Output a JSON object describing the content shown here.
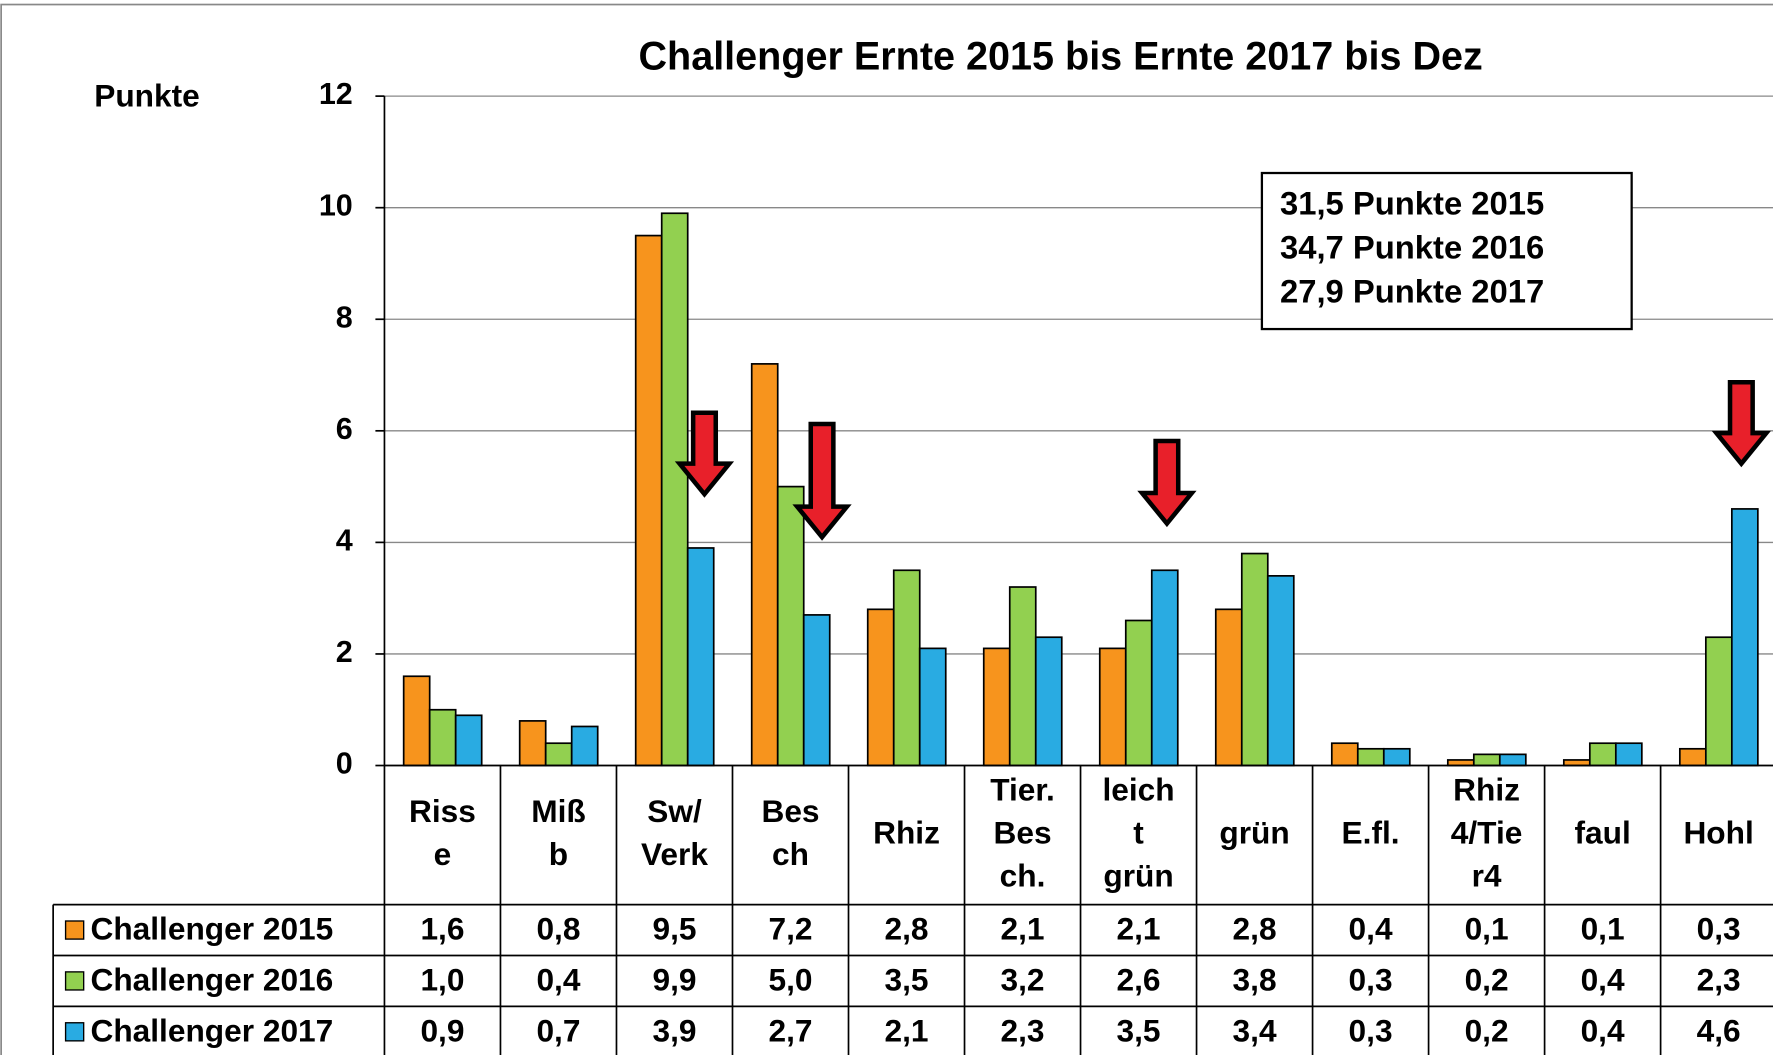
{
  "chart_data": {
    "type": "bar",
    "title": "Challenger Ernte 2015 bis Ernte 2017 bis Dez",
    "y_label": "Punkte",
    "annotation": [
      "31,5 Punkte 2015",
      "34,7 Punkte 2016",
      "27,9 Punkte 2017"
    ],
    "categories": [
      [
        "Riss",
        "e"
      ],
      [
        "Miß",
        "b"
      ],
      [
        "Sw/",
        "Verk"
      ],
      [
        "Bes",
        "ch"
      ],
      [
        "Rhiz"
      ],
      [
        "Tier.",
        "Bes",
        "ch."
      ],
      [
        "leich",
        "t",
        "grün"
      ],
      [
        "grün"
      ],
      [
        "E.fl."
      ],
      [
        "Rhiz",
        "4/Tie",
        "r4"
      ],
      [
        "faul"
      ],
      [
        "Hohl"
      ]
    ],
    "series": [
      {
        "name": "Challenger 2015",
        "color": "#f7941d",
        "values": [
          1.6,
          0.8,
          9.5,
          7.2,
          2.8,
          2.1,
          2.1,
          2.8,
          0.4,
          0.1,
          0.1,
          0.3
        ],
        "value_labels": [
          "1,6",
          "0,8",
          "9,5",
          "7,2",
          "2,8",
          "2,1",
          "2,1",
          "2,8",
          "0,4",
          "0,1",
          "0,1",
          "0,3"
        ]
      },
      {
        "name": "Challenger 2016",
        "color": "#92d050",
        "values": [
          1.0,
          0.4,
          9.9,
          5.0,
          3.5,
          3.2,
          2.6,
          3.8,
          0.3,
          0.2,
          0.4,
          2.3
        ],
        "value_labels": [
          "1,0",
          "0,4",
          "9,9",
          "5,0",
          "3,5",
          "3,2",
          "2,6",
          "3,8",
          "0,3",
          "0,2",
          "0,4",
          "2,3"
        ]
      },
      {
        "name": "Challenger 2017",
        "color": "#29abe2",
        "values": [
          0.9,
          0.7,
          3.9,
          2.7,
          2.1,
          2.3,
          3.5,
          3.4,
          0.3,
          0.2,
          0.4,
          4.6
        ],
        "value_labels": [
          "0,9",
          "0,7",
          "3,9",
          "2,7",
          "2,1",
          "2,3",
          "3,5",
          "3,4",
          "0,3",
          "0,2",
          "0,4",
          "4,6"
        ]
      }
    ],
    "ylim": [
      0,
      12
    ],
    "yticks": [
      0,
      2,
      4,
      6,
      8,
      10,
      12
    ],
    "grid": true
  }
}
